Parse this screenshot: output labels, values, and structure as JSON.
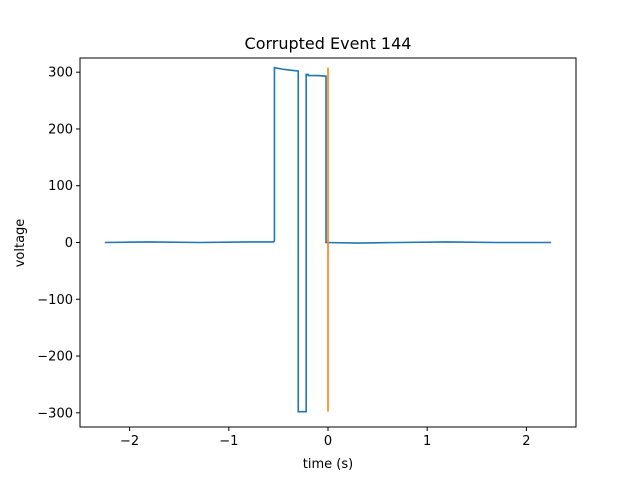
{
  "chart_data": {
    "type": "line",
    "title": "Corrupted Event 144",
    "xlabel": "time (s)",
    "ylabel": "voltage",
    "xlim": [
      -2.5,
      2.5
    ],
    "ylim": [
      -325,
      325
    ],
    "xticks": [
      -2,
      -1,
      0,
      1,
      2
    ],
    "xtick_labels": [
      "−2",
      "−1",
      "0",
      "1",
      "2"
    ],
    "yticks": [
      -300,
      -200,
      -100,
      0,
      100,
      200,
      300
    ],
    "ytick_labels": [
      "−300",
      "−200",
      "−100",
      "0",
      "100",
      "200",
      "300"
    ],
    "grid": false,
    "legend": "none",
    "series": [
      {
        "color": "#1f77b4",
        "x": [
          -2.25,
          -1.8,
          -1.3,
          -0.8,
          -0.55,
          -0.54,
          -0.54,
          -0.45,
          -0.3,
          -0.3,
          -0.22,
          -0.22,
          -0.2,
          -0.2,
          -0.1,
          -0.02,
          -0.02,
          0.3,
          0.7,
          1.2,
          1.7,
          2.25
        ],
        "y": [
          0,
          1,
          0,
          1,
          1,
          3,
          308,
          305,
          302,
          -298,
          -298,
          296,
          296,
          294,
          294,
          293,
          0,
          -1,
          0,
          1,
          0,
          0
        ]
      },
      {
        "color": "#ff7f0e",
        "x": [
          0,
          0
        ],
        "y": [
          -298,
          308
        ]
      }
    ]
  }
}
